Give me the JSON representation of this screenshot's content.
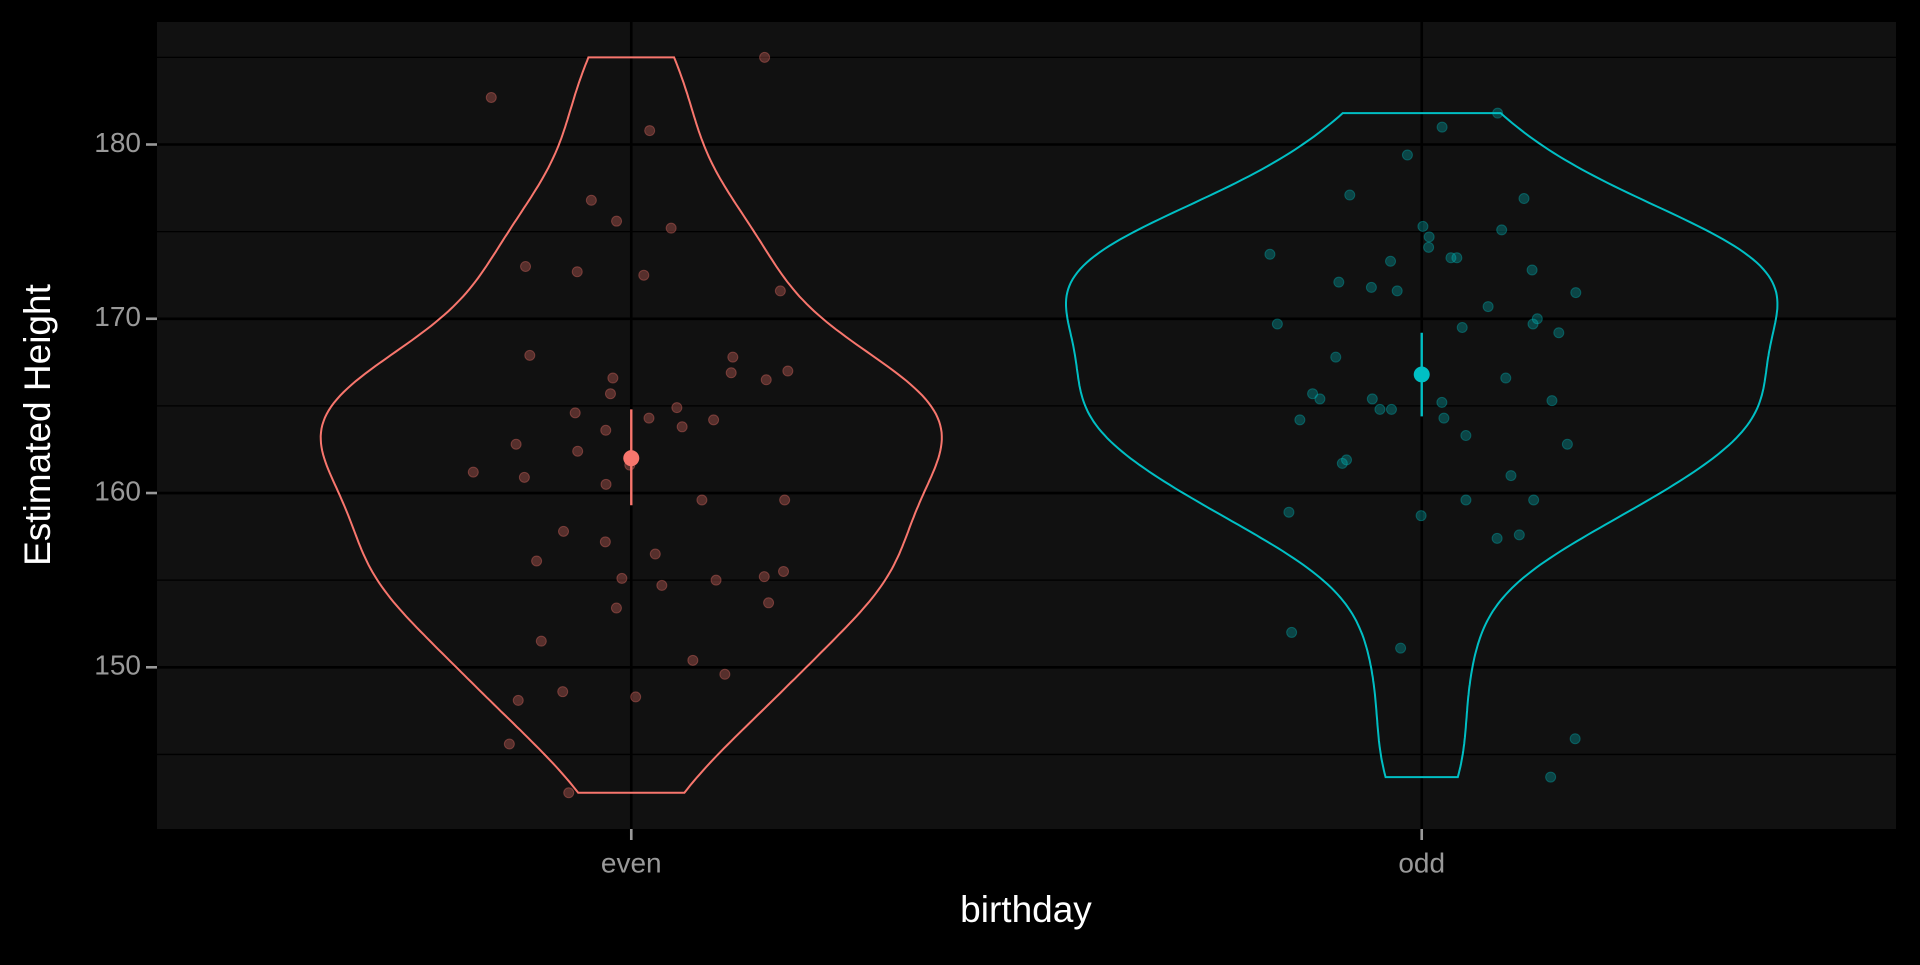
{
  "chart_data": {
    "type": "violin",
    "x_label": "birthday",
    "y_label": "Estimated Height",
    "categories": [
      "even",
      "odd"
    ],
    "ylim": [
      140.72,
      187.03
    ],
    "yticks": [
      150,
      160,
      170,
      180
    ],
    "minor_yticks": [
      145,
      155,
      165,
      175,
      185
    ],
    "grid": true,
    "series": [
      {
        "color": "#F8766D",
        "mean": 162.0,
        "ci": [
          159.3,
          164.8
        ],
        "values": [
          185.0,
          182.7,
          180.8,
          176.8,
          175.6,
          175.2,
          173.0,
          172.7,
          172.5,
          171.6,
          167.8,
          167.9,
          167.0,
          166.9,
          166.6,
          166.5,
          165.7,
          164.9,
          164.6,
          164.2,
          164.3,
          163.8,
          163.6,
          162.8,
          162.4,
          161.6,
          161.2,
          160.9,
          160.5,
          159.6,
          159.6,
          157.8,
          157.2,
          156.1,
          156.5,
          155.5,
          155.2,
          155.1,
          155.0,
          154.7,
          153.7,
          153.4,
          151.5,
          150.4,
          149.6,
          148.6,
          148.3,
          148.1,
          145.6,
          142.8
        ]
      },
      {
        "color": "#00BFC4",
        "mean": 166.8,
        "ci": [
          164.4,
          169.2
        ],
        "values": [
          181.8,
          181.0,
          179.4,
          177.1,
          176.9,
          175.1,
          175.3,
          174.7,
          174.1,
          173.7,
          173.5,
          173.5,
          173.3,
          172.8,
          171.8,
          171.6,
          172.1,
          171.5,
          170.7,
          170.0,
          169.7,
          169.7,
          169.5,
          169.2,
          167.8,
          166.6,
          165.7,
          165.3,
          165.4,
          165.4,
          165.2,
          164.8,
          164.8,
          164.3,
          164.2,
          163.3,
          162.8,
          161.7,
          161.9,
          161.0,
          159.6,
          159.6,
          158.9,
          158.7,
          157.6,
          157.4,
          152.0,
          151.1,
          145.9,
          143.7
        ]
      }
    ]
  }
}
